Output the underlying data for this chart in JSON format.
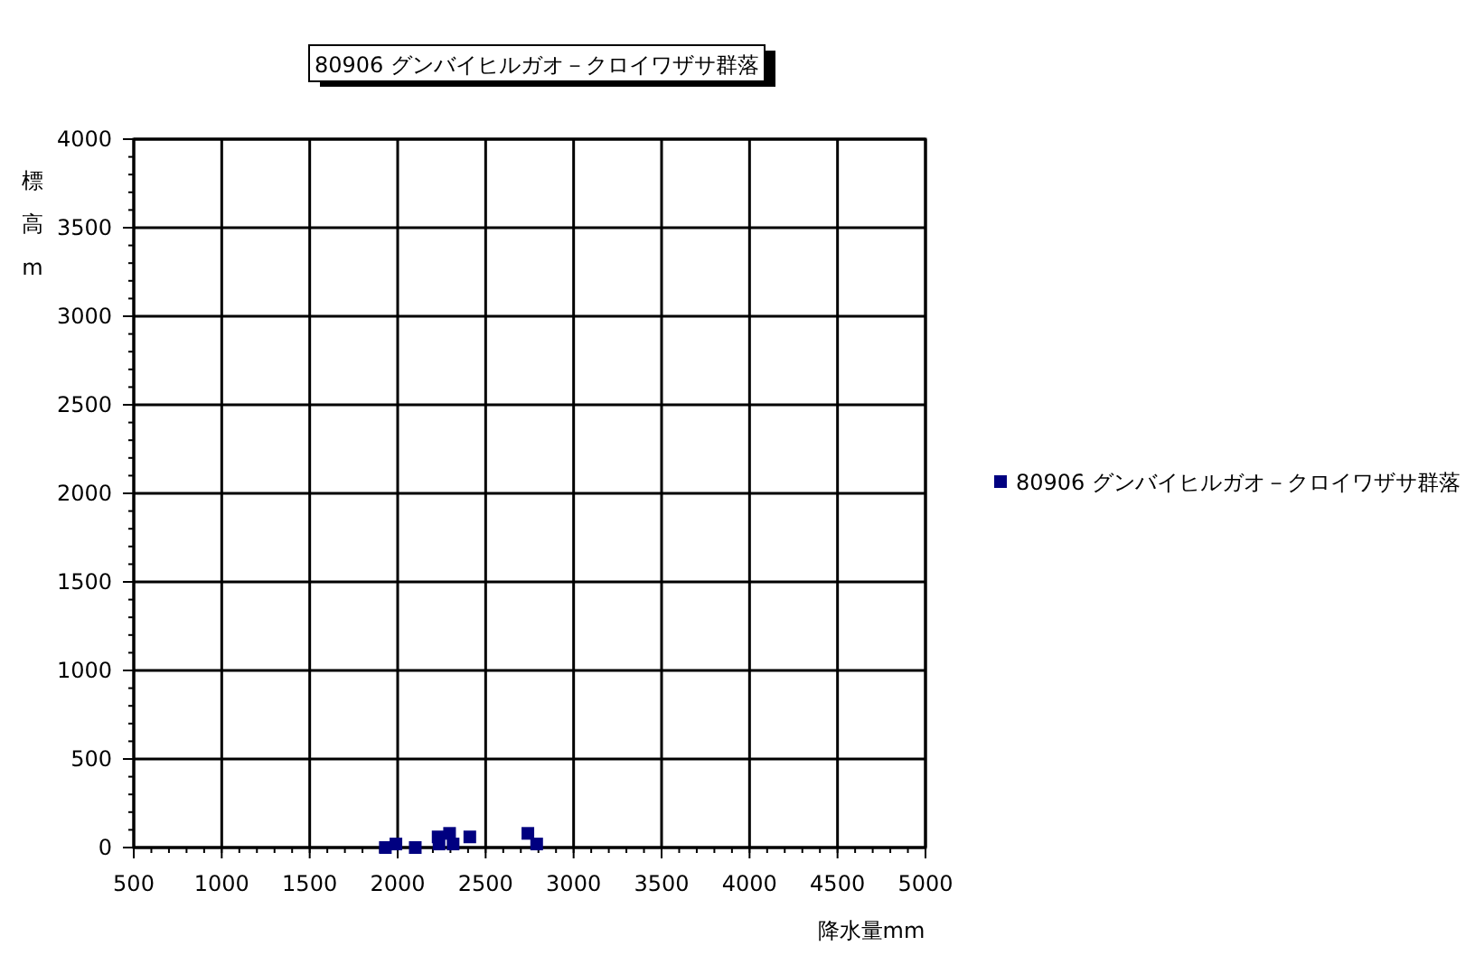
{
  "chart_data": {
    "type": "scatter",
    "title": "80906 グンバイヒルガオ－クロイワザサ群落",
    "xlabel": "降水量mm",
    "ylabel": "標高m",
    "series": [
      {
        "name": "80906 グンバイヒルガオ－クロイワザサ群落",
        "color": "#000080",
        "x": [
          1930,
          1990,
          2100,
          2230,
          2235,
          2295,
          2315,
          2410,
          2740,
          2790
        ],
        "values": [
          0,
          20,
          0,
          60,
          20,
          80,
          20,
          60,
          80,
          20
        ]
      }
    ],
    "xlim": [
      500,
      5000
    ],
    "ylim": [
      0,
      4000
    ],
    "xticks": [
      500,
      1000,
      1500,
      2000,
      2500,
      3000,
      3500,
      4000,
      4500,
      5000
    ],
    "yticks": [
      0,
      500,
      1000,
      1500,
      2000,
      2500,
      3000,
      3500,
      4000
    ],
    "grid": true,
    "legend": "right",
    "marker": "square"
  }
}
